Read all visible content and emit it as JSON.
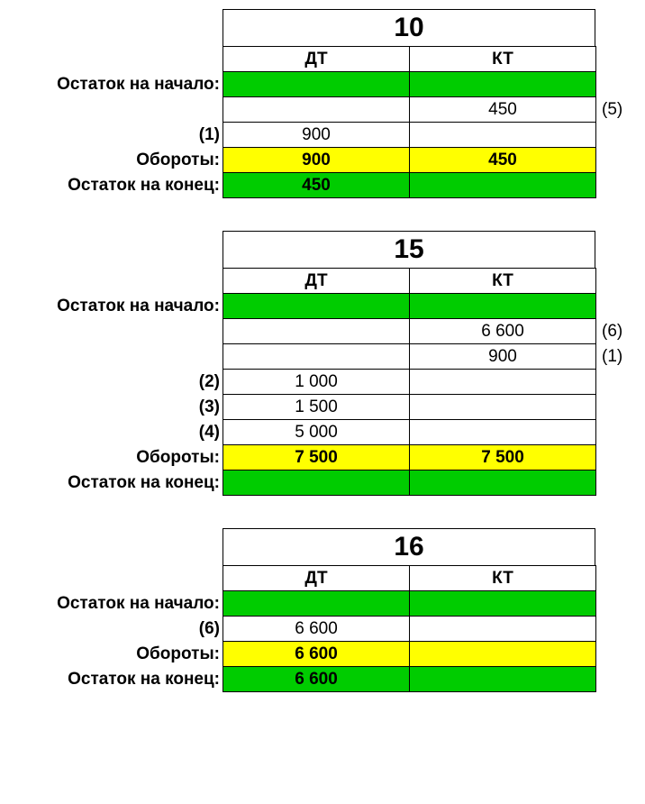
{
  "labels": {
    "opening": "Остаток на начало:",
    "turnover": "Обороты:",
    "closing": "Остаток на конец:",
    "dt": "ДТ",
    "kt": "КТ"
  },
  "colors": {
    "green": "#00cc00",
    "yellow": "#ffff00",
    "border": "#000000",
    "background": "#ffffff"
  },
  "accounts": [
    {
      "number": "10",
      "opening": {
        "dt": "",
        "kt": ""
      },
      "entries": [
        {
          "left": "",
          "dt": "",
          "kt": "450",
          "right": "(5)"
        },
        {
          "left": "(1)",
          "dt": "900",
          "kt": "",
          "right": ""
        }
      ],
      "turnover": {
        "dt": "900",
        "kt": "450"
      },
      "closing": {
        "dt": "450",
        "kt": ""
      }
    },
    {
      "number": "15",
      "opening": {
        "dt": "",
        "kt": ""
      },
      "entries": [
        {
          "left": "",
          "dt": "",
          "kt": "6 600",
          "right": "(6)"
        },
        {
          "left": "",
          "dt": "",
          "kt": "900",
          "right": "(1)"
        },
        {
          "left": "(2)",
          "dt": "1 000",
          "kt": "",
          "right": ""
        },
        {
          "left": "(3)",
          "dt": "1 500",
          "kt": "",
          "right": ""
        },
        {
          "left": "(4)",
          "dt": "5 000",
          "kt": "",
          "right": ""
        }
      ],
      "turnover": {
        "dt": "7 500",
        "kt": "7 500"
      },
      "closing": {
        "dt": "",
        "kt": ""
      }
    },
    {
      "number": "16",
      "opening": {
        "dt": "",
        "kt": ""
      },
      "entries": [
        {
          "left": "(6)",
          "dt": "6 600",
          "kt": "",
          "right": ""
        }
      ],
      "turnover": {
        "dt": "6 600",
        "kt": ""
      },
      "closing": {
        "dt": "6 600",
        "kt": ""
      }
    }
  ]
}
